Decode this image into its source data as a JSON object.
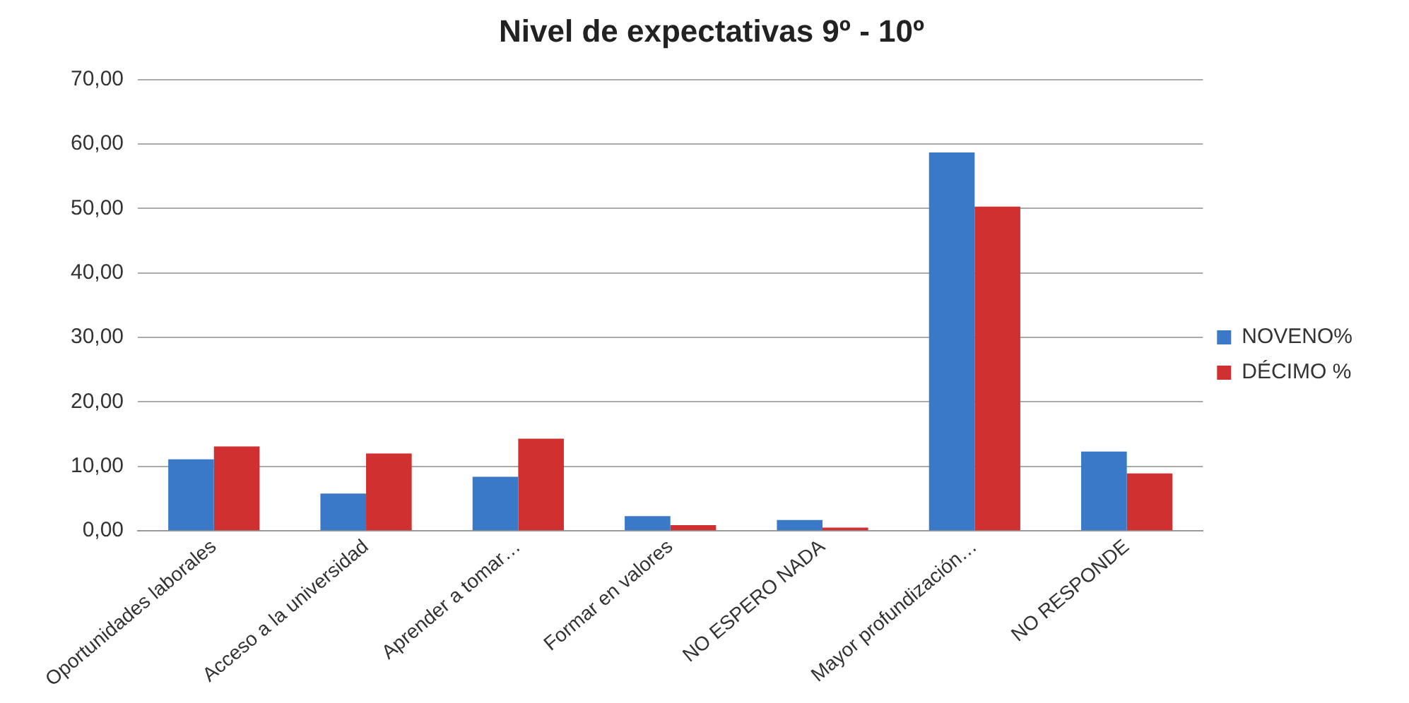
{
  "chart_data": {
    "type": "bar",
    "title": "Nivel de expectativas 9º - 10º",
    "categories": [
      "Oportunidades laborales",
      "Acceso a la universidad",
      "Aprender a tomar…",
      "Formar en valores",
      "NO ESPERO NADA",
      "Mayor profundización…",
      "NO RESPONDE"
    ],
    "series": [
      {
        "name": "NOVENO%",
        "color": "#3a78c8",
        "values": [
          11.1,
          5.8,
          8.4,
          2.3,
          1.7,
          58.7,
          12.3
        ]
      },
      {
        "name": "DÉCIMO %",
        "color": "#d03030",
        "values": [
          13.1,
          12.0,
          14.3,
          0.9,
          0.5,
          50.3,
          8.9
        ]
      }
    ],
    "ylim": [
      0,
      70
    ],
    "yticks": [
      {
        "value": 0,
        "label": "0,00"
      },
      {
        "value": 10,
        "label": "10,00"
      },
      {
        "value": 20,
        "label": "20,00"
      },
      {
        "value": 30,
        "label": "30,00"
      },
      {
        "value": 40,
        "label": "40,00"
      },
      {
        "value": 50,
        "label": "50,00"
      },
      {
        "value": 60,
        "label": "60,00"
      },
      {
        "value": 70,
        "label": "70,00"
      }
    ],
    "grid": "y",
    "legend": "right"
  }
}
